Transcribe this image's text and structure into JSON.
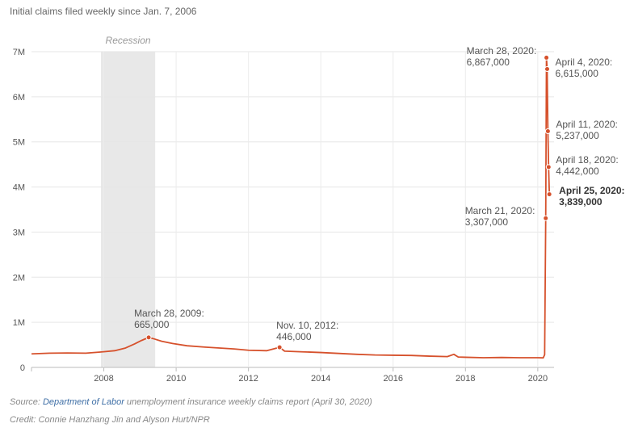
{
  "subtitle": "Initial claims filed weekly since Jan. 7, 2006",
  "footer": {
    "source_prefix": "Source: ",
    "source_link": "Department of Labor",
    "source_rest": " unemployment insurance weekly claims report (April 30, 2020)",
    "credit": "Credit: Connie Hanzhang Jin and Alyson Hurt/NPR"
  },
  "chart_data": {
    "type": "line",
    "title": "",
    "xlabel": "",
    "ylabel": "",
    "xlim": [
      2006.0,
      2020.45
    ],
    "ylim": [
      0,
      7000000
    ],
    "grid": true,
    "x_ticks": [
      2008,
      2010,
      2012,
      2014,
      2016,
      2018,
      2020
    ],
    "x_tick_labels": [
      "2008",
      "2010",
      "2012",
      "2014",
      "2016",
      "2018",
      "2020"
    ],
    "y_ticks": [
      0,
      1000000,
      2000000,
      3000000,
      4000000,
      5000000,
      6000000,
      7000000
    ],
    "y_tick_labels": [
      "0",
      "1M",
      "2M",
      "3M",
      "4M",
      "5M",
      "6M",
      "7M"
    ],
    "recession": {
      "label": "Recession",
      "start": 2007.92,
      "end": 2009.42
    },
    "line_color": "#d6512c",
    "series": [
      {
        "x": [
          2006.0,
          2006.5,
          2007.0,
          2007.5,
          2007.9,
          2008.3,
          2008.6,
          2008.85,
          2009.05,
          2009.24,
          2009.4,
          2009.6,
          2009.9,
          2010.3,
          2010.8,
          2011.2,
          2011.6,
          2012.0,
          2012.5,
          2012.86,
          2013.0,
          2013.5,
          2014.0,
          2014.5,
          2015.0,
          2015.5,
          2016.0,
          2016.5,
          2017.0,
          2017.5,
          2017.68,
          2017.8,
          2018.0,
          2018.5,
          2019.0,
          2019.5,
          2020.0,
          2020.15,
          2020.19,
          2020.22,
          2020.24,
          2020.26,
          2020.28,
          2020.3,
          2020.32
        ],
        "y": [
          300000,
          315000,
          320000,
          315000,
          340000,
          370000,
          430000,
          520000,
          600000,
          665000,
          630000,
          580000,
          530000,
          480000,
          450000,
          430000,
          410000,
          380000,
          370000,
          446000,
          360000,
          345000,
          330000,
          310000,
          290000,
          275000,
          270000,
          265000,
          250000,
          240000,
          290000,
          230000,
          225000,
          215000,
          220000,
          215000,
          215000,
          211000,
          282000,
          3307000,
          6867000,
          6615000,
          5237000,
          4442000,
          3839000
        ]
      }
    ],
    "annotations": [
      {
        "x": 2009.24,
        "y": 665000,
        "lines": [
          "March 28, 2009:",
          "665,000"
        ],
        "bold": false
      },
      {
        "x": 2012.86,
        "y": 446000,
        "lines": [
          "Nov. 10, 2012:",
          "446,000"
        ],
        "bold": false
      },
      {
        "x": 2020.22,
        "y": 3307000,
        "lines": [
          "March 21, 2020:",
          "3,307,000"
        ],
        "bold": false
      },
      {
        "x": 2020.24,
        "y": 6867000,
        "lines": [
          "March 28, 2020:",
          "6,867,000"
        ],
        "bold": false
      },
      {
        "x": 2020.26,
        "y": 6615000,
        "lines": [
          "April 4, 2020:",
          "6,615,000"
        ],
        "bold": false
      },
      {
        "x": 2020.28,
        "y": 5237000,
        "lines": [
          "April 11, 2020:",
          "5,237,000"
        ],
        "bold": false
      },
      {
        "x": 2020.3,
        "y": 4442000,
        "lines": [
          "April 18, 2020:",
          "4,442,000"
        ],
        "bold": false
      },
      {
        "x": 2020.32,
        "y": 3839000,
        "lines": [
          "April 25, 2020:",
          "3,839,000"
        ],
        "bold": true
      }
    ]
  }
}
